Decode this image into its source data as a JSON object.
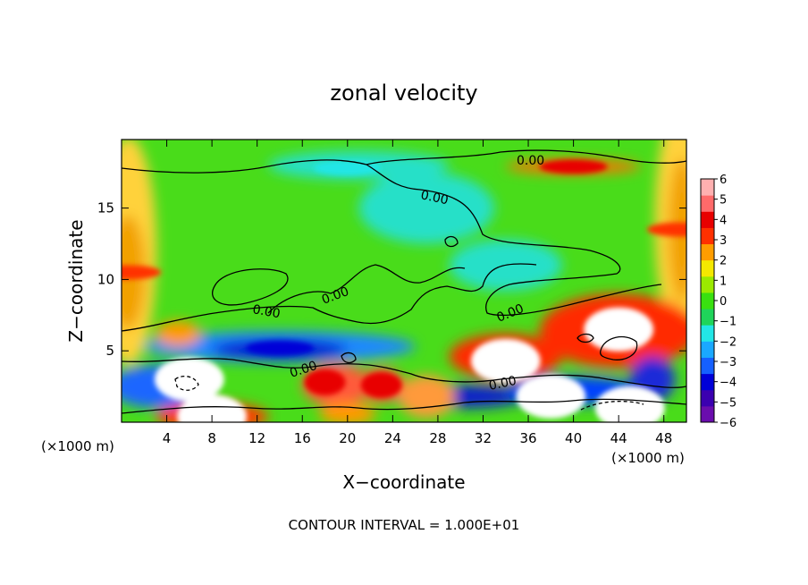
{
  "chart_data": {
    "type": "heatmap",
    "title": "zonal velocity",
    "xlabel": "X−coordinate",
    "ylabel": "Z−coordinate",
    "x_unit": "(×1000 m)",
    "x_ticks": [
      "4",
      "8",
      "12",
      "16",
      "20",
      "24",
      "28",
      "32",
      "36",
      "40",
      "44",
      "48"
    ],
    "y_ticks": [
      "5",
      "10",
      "15"
    ],
    "xlim": [
      0,
      50
    ],
    "ylim": [
      0,
      19.8
    ],
    "footer": "CONTOUR INTERVAL = 1.000E+01",
    "contour_label": "0.00",
    "colorbar": {
      "ticks": [
        "6",
        "5",
        "4",
        "3",
        "2",
        "1",
        "0",
        "−1",
        "−2",
        "−3",
        "−4",
        "−5",
        "−6"
      ],
      "range": [
        -6,
        6
      ],
      "colors": [
        "#6a0dad",
        "#3b00b0",
        "#0000d8",
        "#1560ff",
        "#1aa8ff",
        "#22e6e6",
        "#1fd45a",
        "#39e010",
        "#9bea00",
        "#f4e800",
        "#ff9d00",
        "#ff3000",
        "#e80000",
        "#ff6a6a",
        "#ffb0b0"
      ]
    },
    "features": [
      {
        "kind": "positive-core",
        "x": 44,
        "z": 6.5,
        "value": 6
      },
      {
        "kind": "positive-core",
        "x": 34,
        "z": 4.3,
        "value": 6
      },
      {
        "kind": "positive-core",
        "x": 18,
        "z": 2.8,
        "value": 4
      },
      {
        "kind": "positive-core",
        "x": 23,
        "z": 2.6,
        "value": 4
      },
      {
        "kind": "positive-core",
        "x": 8,
        "z": 0.4,
        "value": 6
      },
      {
        "kind": "positive-band",
        "x": 40,
        "z": 17.9,
        "value": 4
      },
      {
        "kind": "negative-core",
        "x": 6,
        "z": 3.0,
        "value": -6
      },
      {
        "kind": "negative-band",
        "x": 14,
        "z": 5.2,
        "value": -4
      },
      {
        "kind": "negative-core",
        "x": 38,
        "z": 1.8,
        "value": -6
      },
      {
        "kind": "negative-core",
        "x": 45,
        "z": 1.0,
        "value": -6
      },
      {
        "kind": "negative-band",
        "x": 20,
        "z": 17.8,
        "value": -2
      },
      {
        "kind": "positive-edge",
        "x": 0.5,
        "z": 10.5,
        "value": 3
      },
      {
        "kind": "positive-edge",
        "x": 49.5,
        "z": 13.5,
        "value": 3
      }
    ]
  }
}
